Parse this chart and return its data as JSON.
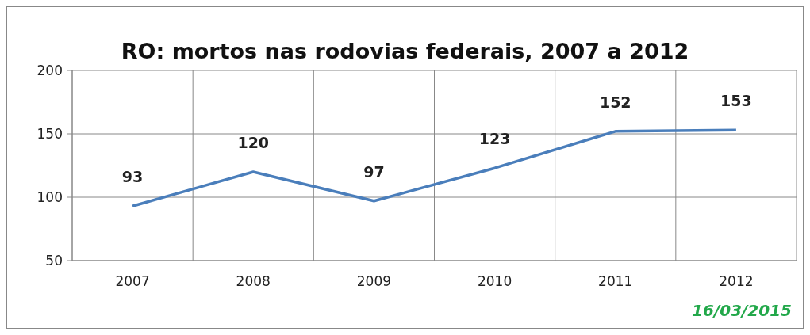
{
  "chart_data": {
    "type": "line",
    "title": "RO: mortos nas rodovias federais, 2007 a 2012",
    "categories": [
      "2007",
      "2008",
      "2009",
      "2010",
      "2011",
      "2012"
    ],
    "series": [
      {
        "color": "#4a7ebb",
        "values": [
          93,
          120,
          97,
          123,
          152,
          153
        ]
      }
    ],
    "data_labels": true,
    "ylim": [
      50,
      200
    ],
    "yticks": [
      50,
      100,
      150,
      200
    ],
    "grid": true,
    "marker": "none",
    "line_style": "solid",
    "annotations": [
      "16/03/2015"
    ]
  }
}
